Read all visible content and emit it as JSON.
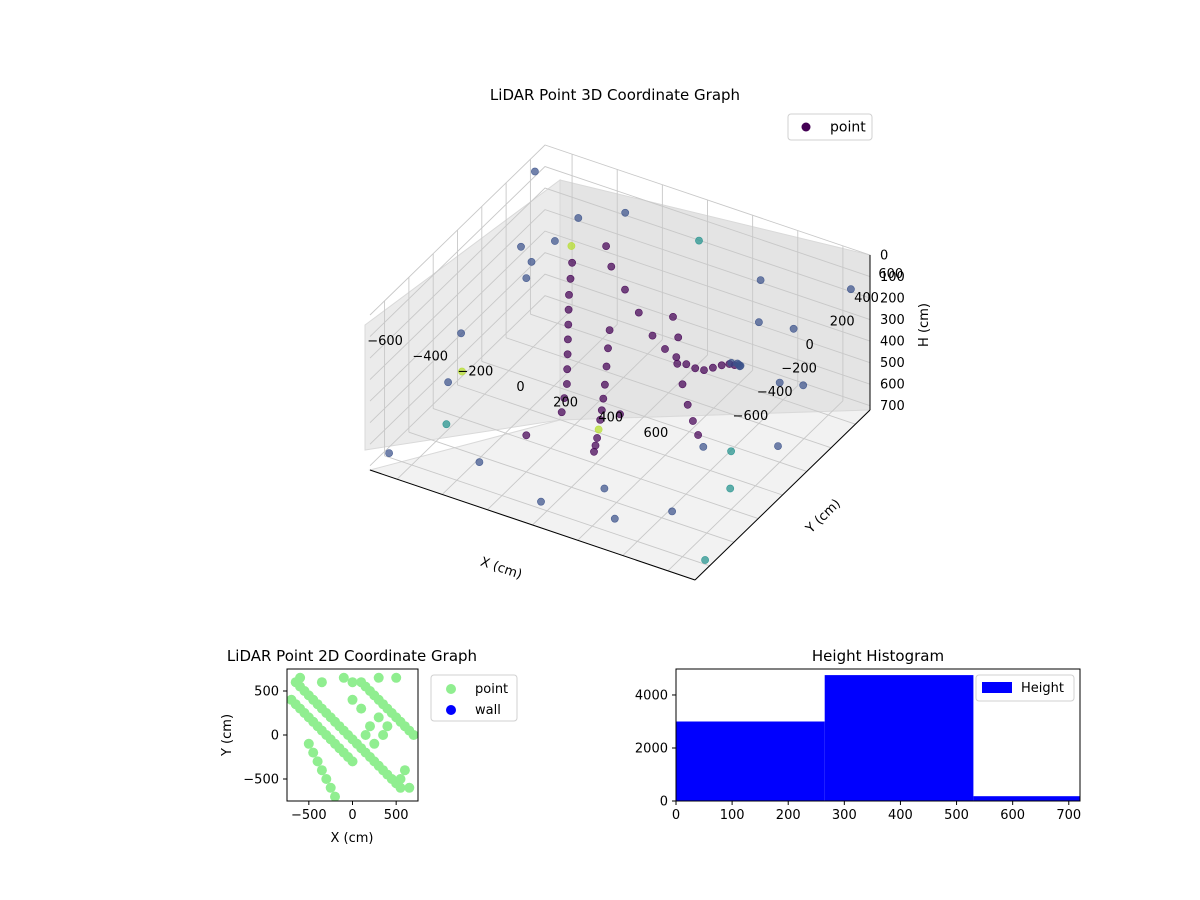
{
  "colors": {
    "point3d_low": "#440154",
    "point3d_mid": "#3b528b",
    "point3d_teal": "#21918c",
    "point3d_high": "#b5de2b",
    "legend_point3d": "#440154",
    "point2d": "#90ee90",
    "wall": "#0000ff",
    "histogram": "#0000ff"
  },
  "chart_data": [
    {
      "type": "scatter",
      "projection": "3d",
      "title": "LiDAR Point 3D Coordinate Graph",
      "xlabel": "X (cm)",
      "ylabel": "Y (cm)",
      "zlabel": "H (cm)",
      "x_ticks": [
        "−600",
        "−400",
        "−200",
        "0",
        "200",
        "400",
        "600"
      ],
      "y_ticks": [
        "−600",
        "−400",
        "−200",
        "0",
        "200",
        "400",
        "600"
      ],
      "z_ticks": [
        "0",
        "100",
        "200",
        "300",
        "400",
        "500",
        "600",
        "700"
      ],
      "xlim": [
        -720,
        720
      ],
      "ylim": [
        -720,
        720
      ],
      "zlim": [
        0,
        720
      ],
      "z_inverted": true,
      "grid": true,
      "legend": {
        "entries": [
          "point"
        ],
        "placement": "upper right"
      },
      "series": [
        {
          "name": "point",
          "points": [
            [
              -350,
              250,
              80
            ],
            [
              -320,
              200,
              120
            ],
            [
              -300,
              150,
              160
            ],
            [
              -280,
              100,
              200
            ],
            [
              -260,
              60,
              240
            ],
            [
              -240,
              20,
              280
            ],
            [
              -220,
              -20,
              320
            ],
            [
              -200,
              -60,
              360
            ],
            [
              -180,
              -100,
              400
            ],
            [
              -160,
              -140,
              440
            ],
            [
              -150,
              -180,
              480
            ],
            [
              -140,
              -220,
              520
            ],
            [
              -200,
              300,
              150
            ],
            [
              -150,
              320,
              250
            ],
            [
              -100,
              340,
              350
            ],
            [
              -50,
              360,
              450
            ],
            [
              0,
              370,
              500
            ],
            [
              50,
              370,
              520
            ],
            [
              100,
              360,
              530
            ],
            [
              150,
              340,
              520
            ],
            [
              200,
              320,
              500
            ],
            [
              250,
              300,
              460
            ],
            [
              300,
              280,
              420
            ],
            [
              350,
              250,
              380
            ],
            [
              400,
              200,
              340
            ],
            [
              450,
              150,
              300
            ],
            [
              480,
              100,
              260
            ],
            [
              500,
              50,
              220
            ],
            [
              520,
              0,
              180
            ],
            [
              520,
              -50,
              150
            ],
            [
              -100,
              100,
              300
            ],
            [
              -80,
              50,
              350
            ],
            [
              -60,
              0,
              400
            ],
            [
              -40,
              -50,
              450
            ],
            [
              -20,
              -100,
              480
            ],
            [
              0,
              -150,
              500
            ],
            [
              20,
              -200,
              510
            ],
            [
              40,
              -250,
              520
            ],
            [
              60,
              -300,
              525
            ],
            [
              80,
              -350,
              525
            ],
            [
              100,
              -400,
              520
            ],
            [
              -600,
              300,
              200
            ],
            [
              -550,
              250,
              300
            ],
            [
              -650,
              -100,
              400
            ],
            [
              -600,
              -300,
              500
            ],
            [
              -500,
              -500,
              550
            ],
            [
              -300,
              -600,
              600
            ],
            [
              0,
              -650,
              650
            ],
            [
              300,
              -600,
              650
            ],
            [
              500,
              -500,
              600
            ],
            [
              650,
              -300,
              550
            ],
            [
              700,
              0,
              500
            ],
            [
              650,
              300,
              400
            ],
            [
              500,
              500,
              300
            ],
            [
              300,
              600,
              200
            ],
            [
              0,
              650,
              150
            ],
            [
              -300,
              600,
              100
            ],
            [
              200,
              100,
              350
            ],
            [
              250,
              50,
              400
            ],
            [
              300,
              0,
              450
            ],
            [
              350,
              -50,
              480
            ],
            [
              400,
              -100,
              500
            ],
            [
              450,
              -150,
              510
            ],
            [
              150,
              200,
              300
            ],
            [
              100,
              250,
              250
            ],
            [
              -250,
              350,
              100
            ],
            [
              -400,
              400,
              50
            ],
            [
              -450,
              300,
              120
            ],
            [
              -500,
              200,
              180
            ],
            [
              600,
              200,
              350
            ],
            [
              600,
              -200,
              450
            ],
            [
              400,
              400,
              250
            ],
            [
              -200,
              -400,
              550
            ],
            [
              200,
              -500,
              600
            ],
            [
              -700,
              0,
              650
            ],
            [
              700,
              -600,
              700
            ],
            [
              700,
              600,
              100
            ],
            [
              -700,
              600,
              50
            ],
            [
              -700,
              -600,
              700
            ],
            [
              0,
              0,
              600
            ]
          ]
        }
      ]
    },
    {
      "type": "scatter",
      "title": "LiDAR Point 2D Coordinate Graph",
      "xlabel": "X (cm)",
      "ylabel": "Y (cm)",
      "x_ticks": [
        "−500",
        "0",
        "500"
      ],
      "y_ticks": [
        "−500",
        "0",
        "500"
      ],
      "xlim": [
        -750,
        750
      ],
      "ylim": [
        -750,
        750
      ],
      "legend": {
        "entries": [
          "point",
          "wall"
        ],
        "placement": "outside right"
      },
      "series": [
        {
          "name": "point",
          "points": [
            [
              -650,
              600
            ],
            [
              -600,
              550
            ],
            [
              -550,
              500
            ],
            [
              -500,
              450
            ],
            [
              -450,
              400
            ],
            [
              -400,
              350
            ],
            [
              -350,
              300
            ],
            [
              -300,
              250
            ],
            [
              -250,
              200
            ],
            [
              -200,
              150
            ],
            [
              -150,
              100
            ],
            [
              -100,
              50
            ],
            [
              -50,
              0
            ],
            [
              0,
              -50
            ],
            [
              50,
              -100
            ],
            [
              100,
              -150
            ],
            [
              150,
              -200
            ],
            [
              200,
              -250
            ],
            [
              250,
              -300
            ],
            [
              300,
              -350
            ],
            [
              350,
              -400
            ],
            [
              400,
              -450
            ],
            [
              450,
              -500
            ],
            [
              500,
              -550
            ],
            [
              550,
              -600
            ],
            [
              -700,
              400
            ],
            [
              -650,
              350
            ],
            [
              -600,
              300
            ],
            [
              -550,
              250
            ],
            [
              -500,
              200
            ],
            [
              -450,
              150
            ],
            [
              -400,
              100
            ],
            [
              -350,
              50
            ],
            [
              -300,
              0
            ],
            [
              -250,
              -50
            ],
            [
              -200,
              -100
            ],
            [
              -150,
              -150
            ],
            [
              -100,
              -200
            ],
            [
              -50,
              -250
            ],
            [
              0,
              -300
            ],
            [
              100,
              600
            ],
            [
              150,
              550
            ],
            [
              200,
              500
            ],
            [
              250,
              450
            ],
            [
              300,
              400
            ],
            [
              350,
              350
            ],
            [
              400,
              300
            ],
            [
              450,
              250
            ],
            [
              500,
              200
            ],
            [
              550,
              150
            ],
            [
              600,
              100
            ],
            [
              650,
              50
            ],
            [
              700,
              0
            ],
            [
              -500,
              -100
            ],
            [
              -450,
              -200
            ],
            [
              -400,
              -300
            ],
            [
              -350,
              -400
            ],
            [
              -300,
              -500
            ],
            [
              -250,
              -600
            ],
            [
              -200,
              -700
            ],
            [
              600,
              -400
            ],
            [
              550,
              -500
            ],
            [
              650,
              -600
            ],
            [
              0,
              600
            ],
            [
              -100,
              650
            ],
            [
              300,
              650
            ],
            [
              500,
              650
            ],
            [
              -350,
              600
            ],
            [
              -600,
              650
            ],
            [
              200,
              100
            ],
            [
              300,
              200
            ],
            [
              400,
              100
            ],
            [
              350,
              0
            ],
            [
              250,
              -100
            ],
            [
              150,
              0
            ],
            [
              100,
              300
            ],
            [
              0,
              400
            ]
          ]
        },
        {
          "name": "wall",
          "points": []
        }
      ]
    },
    {
      "type": "bar",
      "title": "Height Histogram",
      "xlabel": "",
      "ylabel": "",
      "bins": [
        {
          "start": 0,
          "end": 265,
          "count": 3000
        },
        {
          "start": 265,
          "end": 530,
          "count": 4750
        },
        {
          "start": 530,
          "end": 720,
          "count": 180
        }
      ],
      "x_ticks": [
        "0",
        "100",
        "200",
        "300",
        "400",
        "500",
        "600",
        "700"
      ],
      "y_ticks": [
        "0",
        "2000",
        "4000"
      ],
      "xlim": [
        0,
        720
      ],
      "ylim": [
        0,
        4980
      ],
      "legend": {
        "entries": [
          "Height"
        ],
        "placement": "upper right"
      }
    }
  ]
}
